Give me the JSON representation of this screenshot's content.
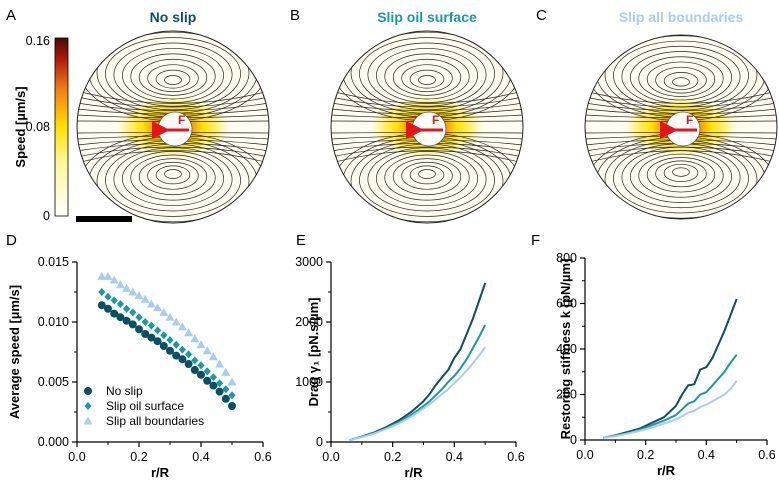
{
  "panel_letters": [
    "A",
    "B",
    "C",
    "D",
    "E",
    "F"
  ],
  "colors": {
    "no_slip": "#0b4f63",
    "slip_oil": "#1b97a6",
    "slip_all": "#a9cdf2",
    "force_arrow": "#e3151a"
  },
  "colorbar": {
    "label": "Speed [µm/s]",
    "ticks": [
      "0.16",
      "0.08",
      "0"
    ],
    "min": 0,
    "max": 0.16,
    "colormap": "hot-reversed (white-yellow-red-dark red)"
  },
  "flow_panels": [
    {
      "letter": "A",
      "title": "No slip",
      "title_color": "#0b4f63",
      "force_label": "F",
      "shape": "circle"
    },
    {
      "letter": "B",
      "title": "Slip oil surface",
      "title_color": "#1b97a6",
      "force_label": "F",
      "shape": "circle"
    },
    {
      "letter": "C",
      "title": "Slip all boundaries",
      "title_color": "#a9cdf2",
      "force_label": "F",
      "shape": "flattened-circle"
    }
  ],
  "chart_data": [
    {
      "panel": "D",
      "type": "scatter",
      "xlabel": "r/R",
      "ylabel": "Average speed [µm/s]",
      "xlim": [
        0,
        0.6
      ],
      "ylim": [
        0,
        0.015
      ],
      "xticks": [
        "0.0",
        "0.2",
        "0.4",
        "0.6"
      ],
      "yticks": [
        "0.000",
        "0.005",
        "0.010",
        "0.015"
      ],
      "legend_position": "bottom-left",
      "series": [
        {
          "name": "No slip",
          "marker": "circle",
          "color": "#0b4f63",
          "x": [
            0.08,
            0.1,
            0.12,
            0.14,
            0.16,
            0.18,
            0.2,
            0.22,
            0.24,
            0.26,
            0.28,
            0.3,
            0.32,
            0.34,
            0.36,
            0.38,
            0.4,
            0.42,
            0.44,
            0.46,
            0.48,
            0.5
          ],
          "y": [
            0.0114,
            0.0111,
            0.0107,
            0.0104,
            0.0101,
            0.0098,
            0.0094,
            0.009,
            0.0087,
            0.0084,
            0.008,
            0.0076,
            0.0072,
            0.0069,
            0.0065,
            0.006,
            0.0056,
            0.0051,
            0.0047,
            0.0042,
            0.0036,
            0.003
          ]
        },
        {
          "name": "Slip oil surface",
          "marker": "diamond",
          "color": "#1b97a6",
          "x": [
            0.08,
            0.1,
            0.12,
            0.14,
            0.16,
            0.18,
            0.2,
            0.22,
            0.24,
            0.26,
            0.28,
            0.3,
            0.32,
            0.34,
            0.36,
            0.38,
            0.4,
            0.42,
            0.44,
            0.46,
            0.48,
            0.5
          ],
          "y": [
            0.0125,
            0.0121,
            0.0118,
            0.0115,
            0.0111,
            0.0108,
            0.0104,
            0.01,
            0.0097,
            0.0093,
            0.0089,
            0.0085,
            0.0081,
            0.0077,
            0.0073,
            0.0068,
            0.0064,
            0.0059,
            0.0054,
            0.0049,
            0.0044,
            0.0039
          ]
        },
        {
          "name": "Slip all boundaries",
          "marker": "triangle",
          "color": "#a9cdf2",
          "x": [
            0.08,
            0.1,
            0.12,
            0.14,
            0.16,
            0.18,
            0.2,
            0.22,
            0.24,
            0.26,
            0.28,
            0.3,
            0.32,
            0.34,
            0.36,
            0.38,
            0.4,
            0.42,
            0.44,
            0.46,
            0.48,
            0.5
          ],
          "y": [
            0.0138,
            0.0138,
            0.0135,
            0.0131,
            0.0128,
            0.0125,
            0.0122,
            0.0119,
            0.0115,
            0.0112,
            0.0108,
            0.0104,
            0.01,
            0.0096,
            0.0091,
            0.0086,
            0.0081,
            0.0076,
            0.0071,
            0.0065,
            0.0058,
            0.005
          ]
        }
      ]
    },
    {
      "panel": "E",
      "type": "line",
      "xlabel": "r/R",
      "ylabel": "Drag γ₁ [pN.s/µm]",
      "xlim": [
        0,
        0.6
      ],
      "ylim": [
        0,
        3000
      ],
      "xticks": [
        "0.0",
        "0.2",
        "0.4",
        "0.6"
      ],
      "yticks": [
        "0",
        "1000",
        "2000",
        "3000"
      ],
      "series": [
        {
          "name": "No slip",
          "color": "#0b4f63",
          "x": [
            0.06,
            0.1,
            0.14,
            0.18,
            0.22,
            0.26,
            0.3,
            0.32,
            0.34,
            0.36,
            0.38,
            0.4,
            0.42,
            0.44,
            0.46,
            0.48,
            0.5
          ],
          "y": [
            30,
            90,
            160,
            250,
            360,
            500,
            680,
            800,
            950,
            1080,
            1200,
            1400,
            1550,
            1800,
            2050,
            2350,
            2650
          ]
        },
        {
          "name": "Slip oil surface",
          "color": "#1b97a6",
          "x": [
            0.06,
            0.1,
            0.14,
            0.18,
            0.22,
            0.26,
            0.3,
            0.32,
            0.34,
            0.36,
            0.38,
            0.4,
            0.42,
            0.44,
            0.46,
            0.48,
            0.5
          ],
          "y": [
            30,
            85,
            150,
            230,
            330,
            450,
            600,
            680,
            780,
            880,
            1000,
            1100,
            1230,
            1380,
            1560,
            1750,
            1950
          ]
        },
        {
          "name": "Slip all boundaries",
          "color": "#a9cdf2",
          "x": [
            0.06,
            0.1,
            0.14,
            0.18,
            0.22,
            0.26,
            0.3,
            0.32,
            0.34,
            0.36,
            0.38,
            0.4,
            0.42,
            0.44,
            0.46,
            0.48,
            0.5
          ],
          "y": [
            30,
            80,
            140,
            220,
            310,
            420,
            560,
            630,
            710,
            800,
            880,
            980,
            1080,
            1190,
            1310,
            1440,
            1580
          ]
        }
      ]
    },
    {
      "panel": "F",
      "type": "line",
      "xlabel": "r/R",
      "ylabel": "Restoring stiffness k [pN/µm]",
      "xlim": [
        0,
        0.6
      ],
      "ylim": [
        0,
        800
      ],
      "xticks": [
        "0.0",
        "0.2",
        "0.4",
        "0.6"
      ],
      "yticks": [
        "0",
        "200",
        "400",
        "600",
        "800"
      ],
      "series": [
        {
          "name": "No slip",
          "color": "#0b4f63",
          "x": [
            0.06,
            0.1,
            0.14,
            0.18,
            0.22,
            0.26,
            0.3,
            0.32,
            0.34,
            0.36,
            0.38,
            0.4,
            0.42,
            0.44,
            0.46,
            0.48,
            0.5
          ],
          "y": [
            10,
            20,
            35,
            50,
            75,
            100,
            150,
            200,
            240,
            245,
            310,
            320,
            360,
            420,
            480,
            550,
            620
          ]
        },
        {
          "name": "Slip oil surface",
          "color": "#1b97a6",
          "x": [
            0.06,
            0.1,
            0.14,
            0.18,
            0.22,
            0.26,
            0.3,
            0.32,
            0.34,
            0.36,
            0.38,
            0.4,
            0.42,
            0.44,
            0.46,
            0.48,
            0.5
          ],
          "y": [
            10,
            18,
            30,
            45,
            65,
            85,
            110,
            135,
            160,
            170,
            200,
            210,
            240,
            270,
            300,
            340,
            375
          ]
        },
        {
          "name": "Slip all boundaries",
          "color": "#a9cdf2",
          "x": [
            0.06,
            0.1,
            0.14,
            0.18,
            0.22,
            0.26,
            0.3,
            0.32,
            0.34,
            0.36,
            0.38,
            0.4,
            0.42,
            0.44,
            0.46,
            0.48,
            0.5
          ],
          "y": [
            10,
            17,
            28,
            40,
            55,
            72,
            90,
            105,
            120,
            128,
            145,
            155,
            170,
            185,
            200,
            225,
            260
          ]
        }
      ]
    }
  ]
}
